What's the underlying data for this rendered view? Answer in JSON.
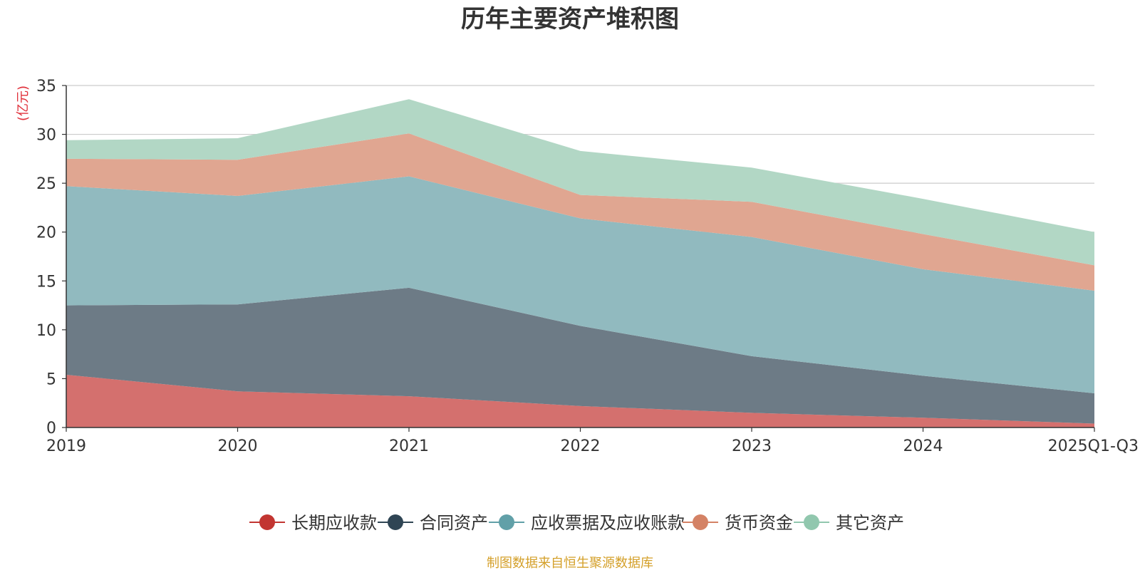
{
  "chart_data": {
    "type": "area",
    "stacked": true,
    "title": "历年主要资产堆积图",
    "ylabel": "(亿元)",
    "xlabel": "",
    "categories": [
      "2019",
      "2020",
      "2021",
      "2022",
      "2023",
      "2024",
      "2025Q1-Q3"
    ],
    "ylim": [
      0,
      35
    ],
    "yticks": [
      0,
      5,
      10,
      15,
      20,
      25,
      30,
      35
    ],
    "grid": true,
    "legend_position": "bottom",
    "series": [
      {
        "name": "长期应收款",
        "color": "#c23531",
        "fill": "#d4706e",
        "values": [
          5.4,
          3.7,
          3.2,
          2.2,
          1.5,
          1.0,
          0.4
        ]
      },
      {
        "name": "合同资产",
        "color": "#2f4554",
        "fill": "#6d7b86",
        "values": [
          7.1,
          8.9,
          11.1,
          8.2,
          5.8,
          4.3,
          3.1
        ]
      },
      {
        "name": "应收票据及应收账款",
        "color": "#61a0a8",
        "fill": "#91babf",
        "values": [
          12.2,
          11.1,
          11.4,
          11.0,
          12.2,
          10.9,
          10.5
        ]
      },
      {
        "name": "货币资金",
        "color": "#d48265",
        "fill": "#e0a691",
        "values": [
          2.8,
          3.7,
          4.4,
          2.4,
          3.6,
          3.6,
          2.6
        ]
      },
      {
        "name": "其它资产",
        "color": "#91c7ae",
        "fill": "#b2d7c5",
        "values": [
          1.9,
          2.2,
          3.5,
          4.5,
          3.5,
          3.6,
          3.4
        ]
      }
    ]
  },
  "footer": {
    "source": "制图数据来自恒生聚源数据库",
    "color": "#d4a02a"
  }
}
